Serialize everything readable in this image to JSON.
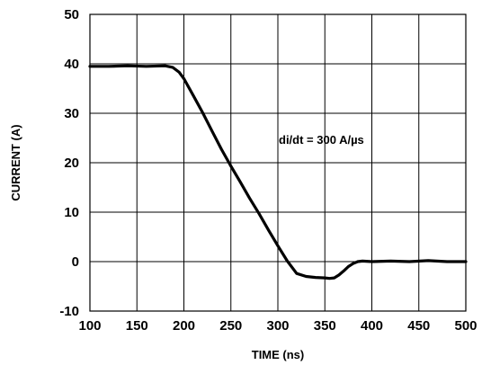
{
  "chart_data": {
    "type": "line",
    "title": "",
    "xlabel": "TIME (ns)",
    "ylabel": "CURRENT (A)",
    "xlim": [
      100,
      500
    ],
    "ylim": [
      -10,
      50
    ],
    "xticks": [
      100,
      150,
      200,
      250,
      300,
      350,
      400,
      450,
      500
    ],
    "yticks": [
      -10,
      0,
      10,
      20,
      30,
      40,
      50
    ],
    "grid": true,
    "annotation": "di/dt = 300 A/µs",
    "series": [
      {
        "x": [
          100,
          120,
          140,
          160,
          180,
          188,
          195,
          200,
          210,
          220,
          230,
          240,
          250,
          260,
          270,
          280,
          290,
          300,
          310,
          320,
          330,
          340,
          350,
          355,
          360,
          365,
          370,
          375,
          380,
          385,
          390,
          400,
          420,
          440,
          460,
          480,
          500
        ],
        "y": [
          39.5,
          39.5,
          39.6,
          39.5,
          39.6,
          39.3,
          38.3,
          37.0,
          33.6,
          30.1,
          26.4,
          22.7,
          19.3,
          16.1,
          12.8,
          9.7,
          6.4,
          3.2,
          0.1,
          -2.4,
          -3.0,
          -3.2,
          -3.3,
          -3.4,
          -3.3,
          -2.7,
          -1.9,
          -1.0,
          -0.4,
          0.0,
          0.1,
          0.0,
          0.1,
          0.0,
          0.2,
          0.0,
          0.0
        ]
      }
    ]
  }
}
